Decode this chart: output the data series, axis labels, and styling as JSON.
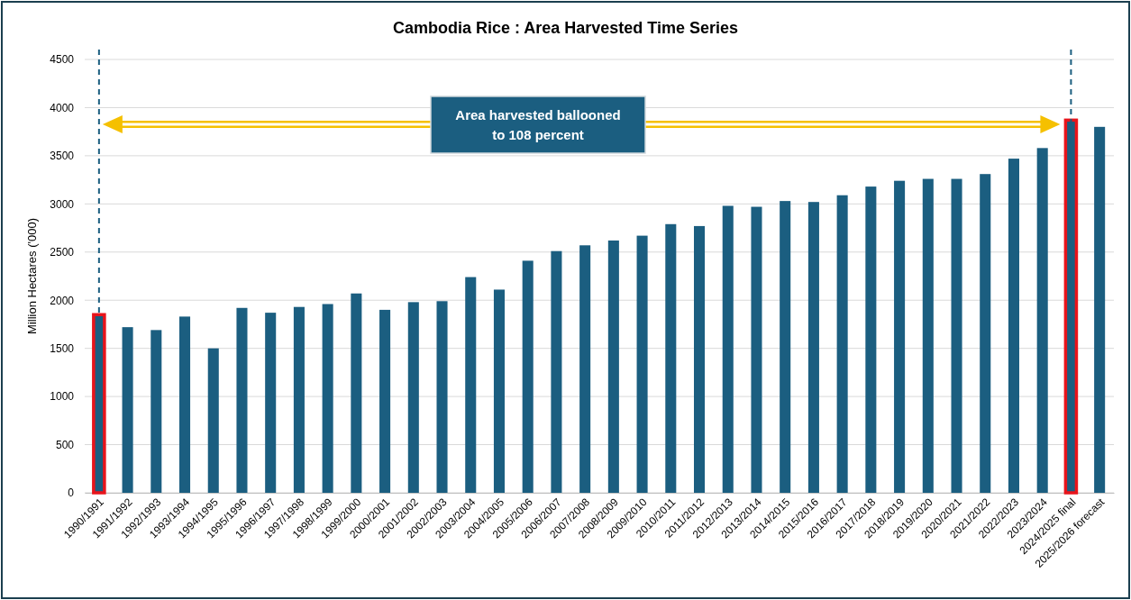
{
  "chart_data": {
    "type": "bar",
    "title": "Cambodia Rice : Area Harvested Time Series",
    "ylabel": "Million Hectares ('000)",
    "categories": [
      "1990/1991",
      "1991/1992",
      "1992/1993",
      "1993/1994",
      "1994/1995",
      "1995/1996",
      "1996/1997",
      "1997/1998",
      "1998/1999",
      "1999/2000",
      "2000/2001",
      "2001/2002",
      "2002/2003",
      "2003/2004",
      "2004/2005",
      "2005/2006",
      "2006/2007",
      "2007/2008",
      "2008/2009",
      "2009/2010",
      "2010/2011",
      "2011/2012",
      "2012/2013",
      "2013/2014",
      "2014/2015",
      "2015/2016",
      "2016/2017",
      "2017/2018",
      "2018/2019",
      "2019/2020",
      "2020/2021",
      "2021/2022",
      "2022/2023",
      "2023/2024",
      "2024/2025 final",
      "2025/2026 forecast"
    ],
    "values": [
      1850,
      1720,
      1690,
      1830,
      1500,
      1920,
      1870,
      1930,
      1960,
      2070,
      1900,
      1980,
      1990,
      2240,
      2110,
      2410,
      2510,
      2570,
      2620,
      2670,
      2790,
      2770,
      2980,
      2970,
      3030,
      3020,
      3090,
      3180,
      3240,
      3260,
      3260,
      3310,
      3470,
      3580,
      3870,
      3800
    ],
    "color": "#1b5e80",
    "ylim": [
      0,
      4500
    ],
    "yticks": [
      0,
      500,
      1000,
      1500,
      2000,
      2500,
      3000,
      3500,
      4000,
      4500
    ],
    "grid": "y",
    "ref_lines": [
      {
        "axis": "x",
        "value": "1990/1991",
        "color": "#1b5e80",
        "line_style": "dashed"
      },
      {
        "axis": "x",
        "value": "2024/2025 final",
        "color": "#1b5e80",
        "line_style": "dashed"
      }
    ],
    "annotations": [
      "Area harvested ballooned to 108 percent"
    ]
  }
}
